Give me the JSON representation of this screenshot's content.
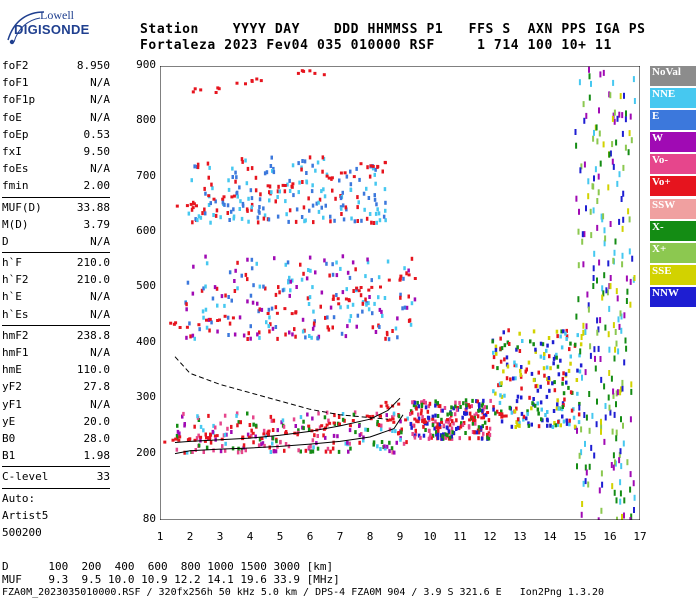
{
  "logo": {
    "line1": "Lowell",
    "line2": "DIGISONDE"
  },
  "header": {
    "line1": "Station    YYYY DAY    DDD HHMMSS P1   FFS S  AXN PPS IGA PS",
    "line2": "Fortaleza 2023 Fev04 035 010000 RSF     1 714 100 10+ 11"
  },
  "params": [
    {
      "k": "foF2",
      "v": "8.950"
    },
    {
      "k": "foF1",
      "v": "N/A"
    },
    {
      "k": "foF1p",
      "v": "N/A"
    },
    {
      "k": "foE",
      "v": "N/A"
    },
    {
      "k": "foEp",
      "v": "0.53"
    },
    {
      "k": "fxI",
      "v": "9.50"
    },
    {
      "k": "foEs",
      "v": "N/A"
    },
    {
      "k": "fmin",
      "v": "2.00"
    },
    {
      "k": "MUF(D)",
      "v": "33.88"
    },
    {
      "k": "M(D)",
      "v": "3.79"
    },
    {
      "k": "D",
      "v": "N/A"
    },
    {
      "k": "h`F",
      "v": "210.0"
    },
    {
      "k": "h`F2",
      "v": "210.0"
    },
    {
      "k": "h`E",
      "v": "N/A"
    },
    {
      "k": "h`Es",
      "v": "N/A"
    },
    {
      "k": "hmF2",
      "v": "238.8"
    },
    {
      "k": "hmF1",
      "v": "N/A"
    },
    {
      "k": "hmE",
      "v": "110.0"
    },
    {
      "k": "yF2",
      "v": "27.8"
    },
    {
      "k": "yF1",
      "v": "N/A"
    },
    {
      "k": "yE",
      "v": "20.0"
    },
    {
      "k": "B0",
      "v": "28.0"
    },
    {
      "k": "B1",
      "v": "1.98"
    },
    {
      "k": "C-level",
      "v": "33"
    }
  ],
  "auto": {
    "line1": "Auto:",
    "line2": "Artist5",
    "line3": "500200"
  },
  "legend": [
    {
      "label": "NoVal",
      "color": "#8c8c8c"
    },
    {
      "label": "NNE",
      "color": "#46c8f0"
    },
    {
      "label": "E",
      "color": "#3c78dc"
    },
    {
      "label": "W",
      "color": "#a00ab4"
    },
    {
      "label": "Vo-",
      "color": "#e6468c"
    },
    {
      "label": "Vo+",
      "color": "#e6141e"
    },
    {
      "label": "SSW",
      "color": "#f0a0a0"
    },
    {
      "label": "X-",
      "color": "#148c14"
    },
    {
      "label": "X+",
      "color": "#8cc850"
    },
    {
      "label": "SSE",
      "color": "#d2d200"
    },
    {
      "label": "NNW",
      "color": "#1e1ed2"
    }
  ],
  "bottom": {
    "d_row": "D      100  200  400  600  800 1000 1500 3000 [km]",
    "muf_row": "MUF    9.3  9.5 10.0 10.9 12.2 14.1 19.6 33.9 [MHz]",
    "footer": "FZA0M_2023035010000.RSF / 320fx256h 50 kHz 5.0 km / DPS-4 FZA0M 904 / 3.9 S 321.6 E   Ion2Png 1.3.20"
  },
  "chart_data": {
    "type": "scatter",
    "xlim": [
      1,
      17
    ],
    "ylim": [
      80,
      900
    ],
    "x_ticks": [
      "1",
      "2",
      "3",
      "4",
      "5",
      "6",
      "7",
      "8",
      "9",
      "10",
      "11",
      "12",
      "13",
      "14",
      "15",
      "16",
      "17"
    ],
    "y_ticks": [
      "80",
      "200",
      "300",
      "400",
      "500",
      "600",
      "700",
      "800",
      "900"
    ],
    "y_tick_values": [
      80,
      200,
      300,
      400,
      500,
      600,
      700,
      800,
      900
    ],
    "grid": false,
    "traces": [
      {
        "name": "F2 trace (1 hop)",
        "x": [
          1.5,
          2,
          3,
          4,
          5,
          6,
          7,
          8,
          8.6,
          9,
          10,
          11,
          12
        ],
        "y": [
          225,
          228,
          232,
          235,
          240,
          248,
          258,
          270,
          290,
          260,
          262,
          266,
          272
        ]
      },
      {
        "name": "2 hop",
        "x": [
          1.8,
          3,
          5,
          7,
          8,
          9
        ],
        "y": [
          435,
          448,
          460,
          478,
          500,
          520
        ]
      },
      {
        "name": "3 hop",
        "x": [
          1.9,
          3,
          5,
          7,
          8
        ],
        "y": [
          650,
          665,
          685,
          705,
          725
        ]
      },
      {
        "name": "4 hop",
        "x": [
          2.5,
          4,
          6
        ],
        "y": [
          860,
          875,
          890
        ]
      }
    ],
    "profile_curves": [
      {
        "name": "solid lower",
        "x": [
          1.5,
          2,
          3,
          4,
          5,
          6,
          7,
          8,
          8.8,
          9.1
        ],
        "y": [
          200,
          205,
          208,
          210,
          213,
          217,
          222,
          230,
          245,
          270
        ]
      },
      {
        "name": "solid upper",
        "x": [
          1.5,
          2,
          3,
          4,
          5,
          6,
          7,
          8,
          8.6,
          9.0
        ],
        "y": [
          220,
          222,
          225,
          228,
          233,
          240,
          250,
          262,
          278,
          300
        ]
      },
      {
        "name": "dashed",
        "x": [
          1.5,
          2,
          3,
          4,
          5,
          6,
          7,
          8,
          8.6
        ],
        "y": [
          375,
          345,
          325,
          310,
          295,
          280,
          270,
          265,
          262
        ]
      }
    ],
    "scatter_regions": [
      {
        "name": "F2 main band",
        "x": [
          1.5,
          9.3
        ],
        "y": [
          205,
          280
        ],
        "colors": [
          "#e6141e",
          "#e6468c",
          "#46c8f0",
          "#a00ab4",
          "#148c14"
        ]
      },
      {
        "name": "post-foF2 band",
        "x": [
          9.3,
          12
        ],
        "y": [
          230,
          300
        ],
        "colors": [
          "#e6141e",
          "#e6468c",
          "#148c14",
          "#1e1ed2"
        ]
      },
      {
        "name": "2-hop band",
        "x": [
          1.8,
          9.5
        ],
        "y": [
          410,
          560
        ],
        "colors": [
          "#e6141e",
          "#46c8f0",
          "#3c78dc",
          "#a00ab4"
        ]
      },
      {
        "name": "3-hop band",
        "x": [
          1.9,
          8.5
        ],
        "y": [
          620,
          740
        ],
        "colors": [
          "#e6141e",
          "#3c78dc",
          "#46c8f0"
        ]
      },
      {
        "name": "high-freq band",
        "x": [
          12,
          15
        ],
        "y": [
          250,
          430
        ],
        "colors": [
          "#e6141e",
          "#d2d200",
          "#46c8f0",
          "#148c14",
          "#1e1ed2"
        ]
      },
      {
        "name": "spread 15-17 MHz",
        "x": [
          14.8,
          16.8
        ],
        "y": [
          80,
          900
        ],
        "colors": [
          "#148c14",
          "#d2d200",
          "#1e1ed2",
          "#8cc850",
          "#46c8f0",
          "#a00ab4"
        ]
      }
    ]
  }
}
